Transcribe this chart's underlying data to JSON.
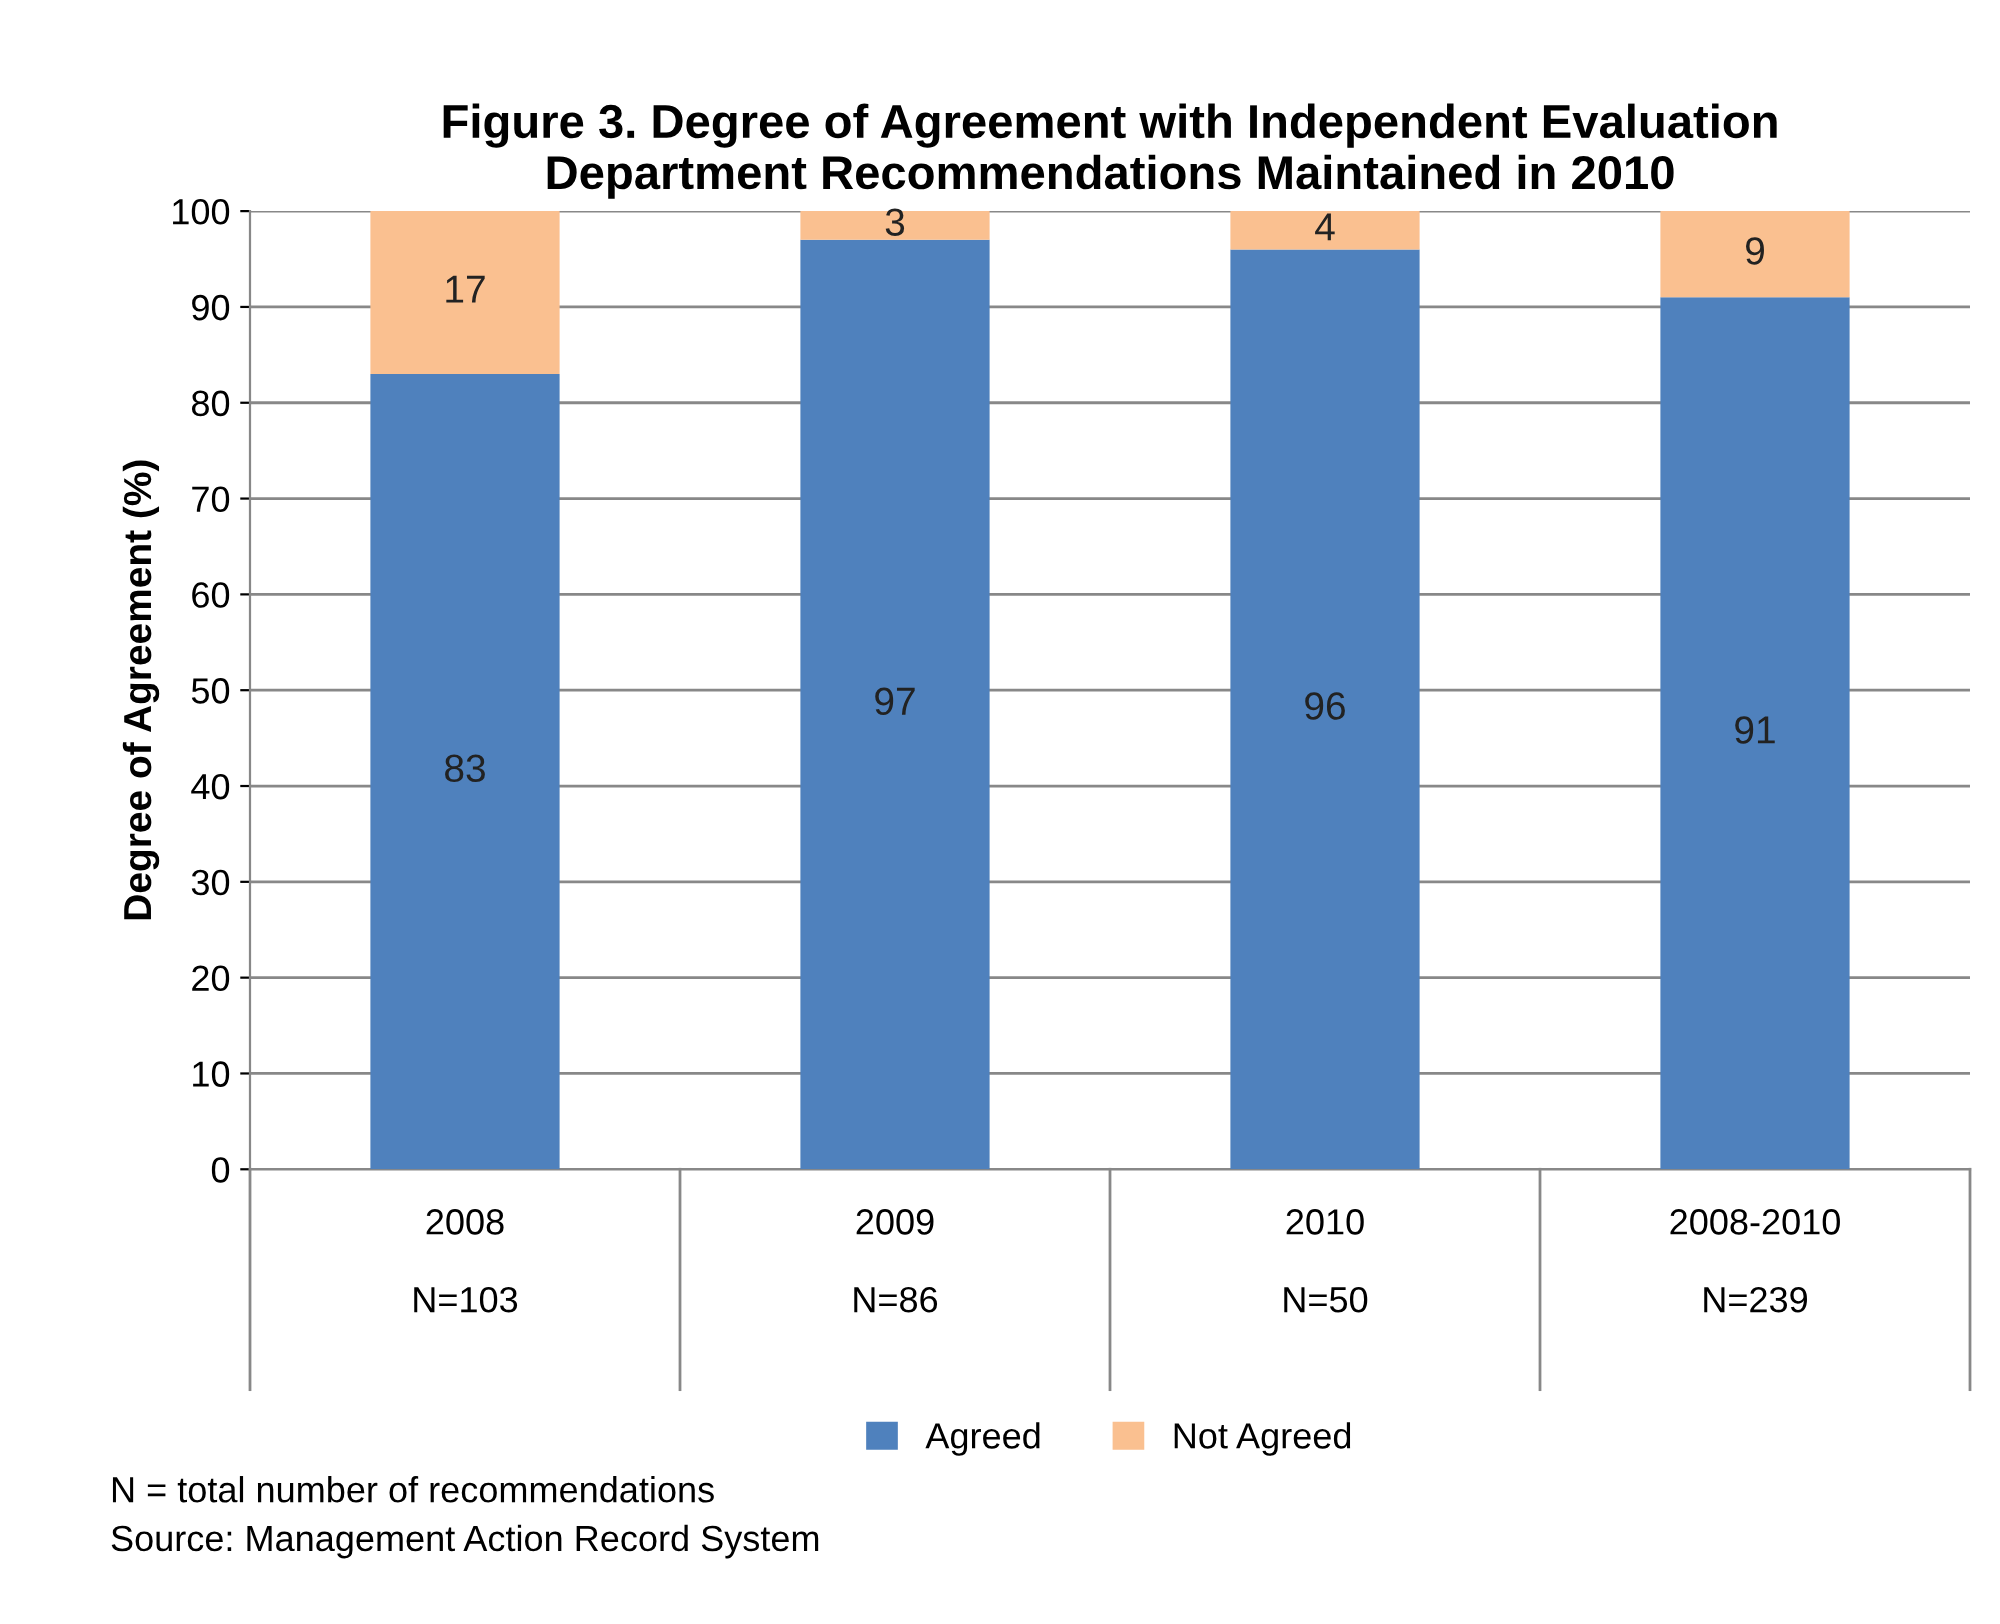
{
  "chart_data": {
    "type": "bar",
    "stacked": true,
    "title": "Figure 3. Degree of Agreement with Independent Evaluation\nDepartment Recommendations Maintained in 2010",
    "ylabel": "Degree of Agreement (%)",
    "categories": [
      "2008\n\nN=103",
      "2009\n\nN=86",
      "2010\n\nN=50",
      "2008-2010\n\nN=239"
    ],
    "series": [
      {
        "name": "Agreed",
        "color": "#4f81bd",
        "values": [
          83,
          97,
          96,
          91
        ]
      },
      {
        "name": "Not Agreed",
        "color": "#fac090",
        "values": [
          17,
          3,
          4,
          9
        ]
      }
    ],
    "ylim": [
      0,
      100
    ],
    "yticks": [
      0,
      10,
      20,
      30,
      40,
      50,
      60,
      70,
      80,
      90,
      100
    ],
    "grid": "y",
    "legend": "bottom",
    "data_labels": true,
    "annotations": [
      "N = total number of recommendations",
      "Source: Management Action Record System"
    ]
  }
}
